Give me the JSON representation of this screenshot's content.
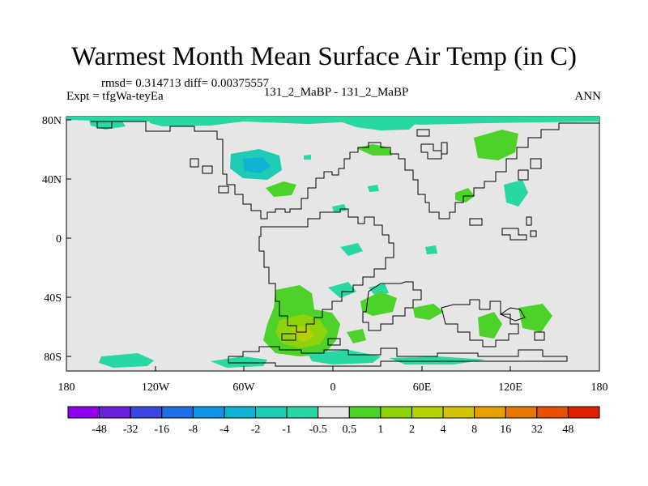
{
  "title": "Warmest Month Mean Surface Air Temp (in C)",
  "stats": "rmsd= 0.314713  diff= 0.00375557",
  "expt": "Expt = tfgWa-teyEa",
  "comparison": "131_2_MaBP - 131_2_MaBP",
  "season": "ANN",
  "map": {
    "lon_ticks": [
      "180",
      "120W",
      "60W",
      "0",
      "60E",
      "120E",
      "180"
    ],
    "lat_ticks": [
      "80N",
      "40N",
      "0",
      "40S",
      "80S"
    ],
    "background_color": "#e6e6e6",
    "coastline_color": "#000000"
  },
  "colorbar": {
    "labels": [
      "-48",
      "-32",
      "-16",
      "-8",
      "-4",
      "-2",
      "-1",
      "-0.5",
      "0.5",
      "1",
      "2",
      "4",
      "8",
      "16",
      "32",
      "48"
    ],
    "colors": [
      "#8f00ee",
      "#6a22dd",
      "#3c46e0",
      "#1e6ee6",
      "#0f96e6",
      "#10b4d2",
      "#1ecbb4",
      "#28d7a2",
      "#e6e6e6",
      "#4cd228",
      "#8ed20a",
      "#b4d200",
      "#d2c300",
      "#e6a000",
      "#e67800",
      "#e65000",
      "#e02000"
    ]
  }
}
